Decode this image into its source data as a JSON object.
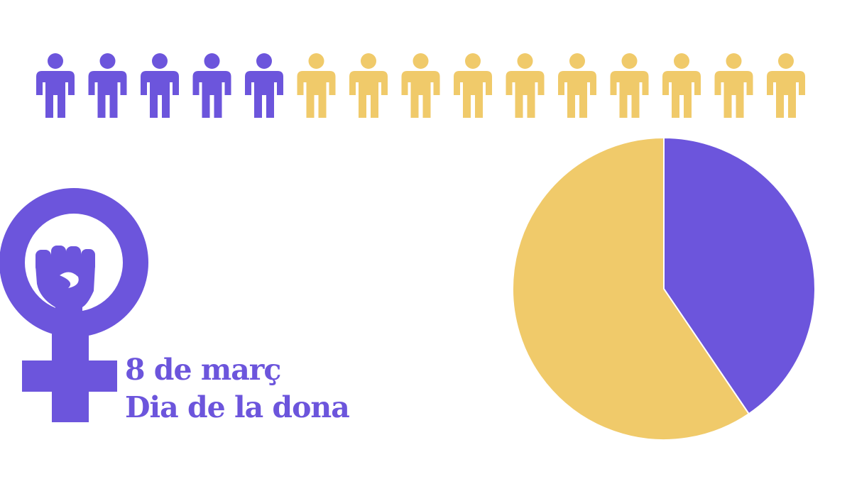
{
  "colors": {
    "purple": "#6c55dc",
    "yellow": "#f0ca6a",
    "background": "#ffffff"
  },
  "caption": {
    "line1": "8 de març",
    "line2": "Dia de la dona"
  },
  "emblem": {
    "icon": "female-symbol-raised-fist-icon"
  },
  "chart_data": [
    {
      "type": "pictogram",
      "icon": "person-icon",
      "total": 15,
      "series": [
        {
          "count": 5,
          "color": "#6c55dc"
        },
        {
          "count": 10,
          "color": "#f0ca6a"
        }
      ]
    },
    {
      "type": "pie",
      "start": "12 o'clock",
      "direction": "clockwise",
      "slices": [
        {
          "value": 40.5,
          "color": "#6c55dc"
        },
        {
          "value": 59.5,
          "color": "#f0ca6a"
        }
      ],
      "legend": "none"
    }
  ]
}
